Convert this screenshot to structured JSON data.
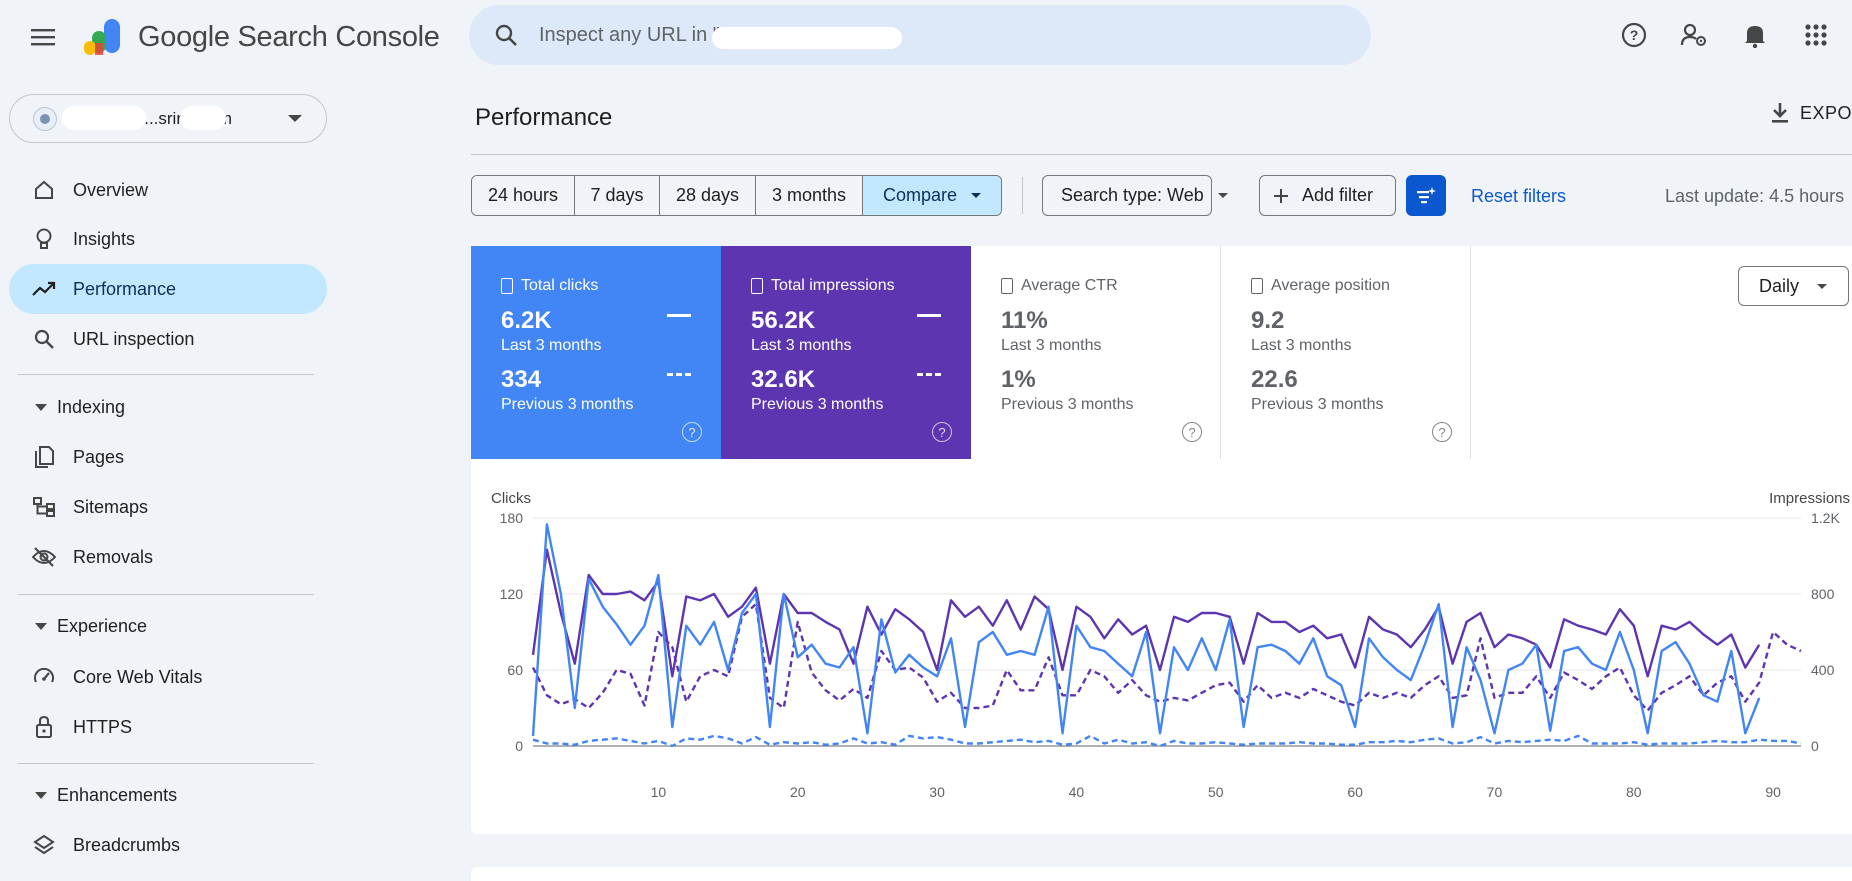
{
  "header": {
    "brand": "Google Search Console",
    "search_placeholder": "Inspect any URL in \"",
    "icons": [
      "menu-icon",
      "search-icon",
      "help-icon",
      "manage-users-icon",
      "notifications-icon",
      "apps-icon"
    ]
  },
  "sidebar": {
    "property": ".............sring.com",
    "items": [
      {
        "label": "Overview",
        "icon": "home-icon"
      },
      {
        "label": "Insights",
        "icon": "lightbulb-icon"
      },
      {
        "label": "Performance",
        "icon": "trending-up-icon",
        "active": true
      },
      {
        "label": "URL inspection",
        "icon": "search-icon"
      }
    ],
    "sections": [
      {
        "label": "Indexing",
        "items": [
          {
            "label": "Pages",
            "icon": "pages-icon"
          },
          {
            "label": "Sitemaps",
            "icon": "sitemap-icon"
          },
          {
            "label": "Removals",
            "icon": "visibility-off-icon"
          }
        ]
      },
      {
        "label": "Experience",
        "items": [
          {
            "label": "Core Web Vitals",
            "icon": "speed-icon"
          },
          {
            "label": "HTTPS",
            "icon": "lock-icon"
          }
        ]
      },
      {
        "label": "Enhancements",
        "items": [
          {
            "label": "Breadcrumbs",
            "icon": "layers-icon"
          }
        ]
      }
    ]
  },
  "main": {
    "title": "Performance",
    "export_label": "EXPO",
    "date_ranges": [
      "24 hours",
      "7 days",
      "28 days",
      "3 months",
      "Compare"
    ],
    "selected_range": "Compare",
    "search_type": "Search type: Web",
    "add_filter": "Add filter",
    "reset_filters": "Reset filters",
    "last_update": "Last update: 4.5 hours",
    "granularity": "Daily"
  },
  "metrics": [
    {
      "title": "Total clicks",
      "current": "6.2K",
      "current_period": "Last 3 months",
      "previous": "334",
      "previous_period": "Previous 3 months",
      "color": "#4285f4",
      "selected": true
    },
    {
      "title": "Total impressions",
      "current": "56.2K",
      "current_period": "Last 3 months",
      "previous": "32.6K",
      "previous_period": "Previous 3 months",
      "color": "#5e35b1",
      "selected": true
    },
    {
      "title": "Average CTR",
      "current": "11%",
      "current_period": "Last 3 months",
      "previous": "1%",
      "previous_period": "Previous 3 months",
      "selected": false
    },
    {
      "title": "Average position",
      "current": "9.2",
      "current_period": "Last 3 months",
      "previous": "22.6",
      "previous_period": "Previous 3 months",
      "selected": false
    }
  ],
  "chart_data": {
    "type": "line",
    "left_axis_title": "Clicks",
    "right_axis_title": "Impressions",
    "left_ticks": [
      "180",
      "120",
      "60",
      "0"
    ],
    "right_ticks": [
      "1.2K",
      "800",
      "400",
      "0"
    ],
    "ylim_left": [
      0,
      180
    ],
    "ylim_right": [
      0,
      1200
    ],
    "x_ticks": [
      "10",
      "20",
      "30",
      "40",
      "50",
      "60",
      "70",
      "80",
      "90"
    ],
    "xlim": [
      1,
      92
    ],
    "series": [
      {
        "name": "Clicks",
        "style": "solid",
        "axis": "left",
        "color": "#4285f4",
        "values": [
          8,
          175,
          120,
          30,
          132,
          110,
          96,
          80,
          95,
          135,
          15,
          95,
          80,
          98,
          60,
          105,
          120,
          15,
          120,
          70,
          80,
          65,
          62,
          78,
          10,
          100,
          58,
          72,
          62,
          55,
          85,
          15,
          82,
          90,
          72,
          75,
          72,
          110,
          10,
          95,
          78,
          75,
          65,
          55,
          90,
          10,
          78,
          60,
          85,
          60,
          100,
          15,
          78,
          80,
          75,
          65,
          85,
          55,
          48,
          15,
          85,
          70,
          60,
          52,
          80,
          112,
          15,
          78,
          52,
          10,
          60,
          65,
          80,
          12,
          75,
          78,
          65,
          60,
          90,
          60,
          10,
          75,
          82,
          65,
          40,
          35,
          75,
          10,
          38,
          null,
          null,
          null
        ]
      },
      {
        "name": "Impressions",
        "style": "solid",
        "axis": "left",
        "color": "#5e35b1",
        "values": [
          72,
          155,
          105,
          65,
          135,
          120,
          120,
          122,
          115,
          130,
          55,
          118,
          115,
          120,
          102,
          110,
          125,
          65,
          120,
          105,
          105,
          98,
          92,
          65,
          110,
          88,
          108,
          100,
          90,
          60,
          115,
          102,
          110,
          95,
          115,
          92,
          118,
          108,
          60,
          110,
          102,
          85,
          100,
          88,
          95,
          60,
          102,
          98,
          105,
          105,
          102,
          65,
          105,
          98,
          98,
          90,
          95,
          85,
          88,
          62,
          102,
          92,
          88,
          78,
          92,
          110,
          65,
          98,
          105,
          78,
          88,
          85,
          80,
          62,
          100,
          95,
          92,
          88,
          108,
          95,
          55,
          95,
          92,
          98,
          88,
          80,
          88,
          62,
          80,
          null,
          null,
          null
        ]
      },
      {
        "name": "Clicks (previous)",
        "style": "dashed",
        "axis": "left",
        "color": "#4285f4",
        "values": [
          5,
          2,
          2,
          1,
          4,
          5,
          6,
          4,
          2,
          4,
          0,
          6,
          5,
          8,
          6,
          2,
          7,
          1,
          3,
          2,
          3,
          1,
          2,
          6,
          2,
          3,
          1,
          8,
          6,
          7,
          5,
          2,
          2,
          3,
          4,
          5,
          3,
          4,
          1,
          2,
          8,
          2,
          5,
          2,
          3,
          0,
          4,
          2,
          2,
          3,
          2,
          1,
          2,
          2,
          2,
          3,
          2,
          2,
          1,
          1,
          3,
          3,
          4,
          3,
          5,
          6,
          2,
          3,
          7,
          2,
          4,
          3,
          4,
          5,
          4,
          8,
          2,
          2,
          2,
          3,
          1,
          2,
          2,
          2,
          3,
          4,
          3,
          3,
          5,
          4,
          4,
          2
        ]
      },
      {
        "name": "Impressions (previous)",
        "style": "dashed",
        "axis": "left",
        "color": "#5e35b1",
        "values": [
          62,
          40,
          33,
          37,
          30,
          42,
          60,
          57,
          32,
          90,
          78,
          35,
          55,
          60,
          55,
          102,
          112,
          38,
          30,
          98,
          58,
          44,
          36,
          45,
          38,
          75,
          60,
          62,
          54,
          35,
          42,
          30,
          30,
          32,
          60,
          44,
          44,
          70,
          40,
          40,
          60,
          55,
          42,
          52,
          40,
          35,
          38,
          36,
          42,
          48,
          50,
          35,
          48,
          38,
          42,
          38,
          45,
          40,
          35,
          32,
          42,
          38,
          42,
          38,
          48,
          55,
          38,
          40,
          85,
          38,
          42,
          42,
          55,
          38,
          58,
          52,
          45,
          55,
          62,
          40,
          28,
          42,
          48,
          55,
          40,
          50,
          55,
          35,
          50,
          90,
          80,
          75
        ]
      }
    ]
  }
}
